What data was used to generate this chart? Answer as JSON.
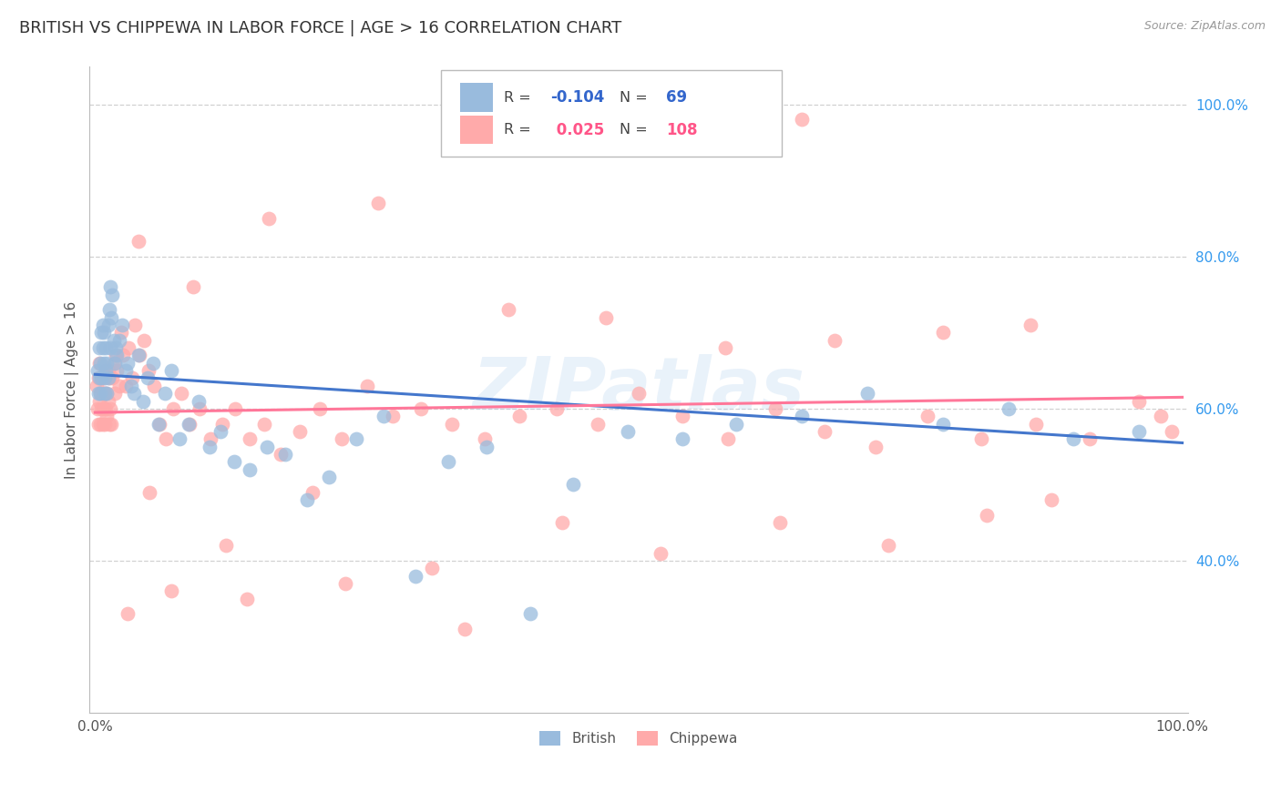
{
  "title": "BRITISH VS CHIPPEWA IN LABOR FORCE | AGE > 16 CORRELATION CHART",
  "source": "Source: ZipAtlas.com",
  "ylabel": "In Labor Force | Age > 16",
  "british_R": -0.104,
  "british_N": 69,
  "chippewa_R": 0.025,
  "chippewa_N": 108,
  "british_color": "#99BBDD",
  "chippewa_color": "#FFAAAA",
  "british_line_color": "#4477CC",
  "chippewa_line_color": "#FF7799",
  "watermark": "ZIPatlas",
  "xlim": [
    0.0,
    1.0
  ],
  "ylim": [
    0.2,
    1.05
  ],
  "yticks": [
    0.4,
    0.6,
    0.8,
    1.0
  ],
  "ytick_labels": [
    "40.0%",
    "60.0%",
    "80.0%",
    "100.0%"
  ],
  "brit_line_y0": 0.645,
  "brit_line_y1": 0.555,
  "chip_line_y0": 0.595,
  "chip_line_y1": 0.615,
  "british_x": [
    0.002,
    0.003,
    0.004,
    0.004,
    0.005,
    0.005,
    0.006,
    0.006,
    0.007,
    0.007,
    0.008,
    0.008,
    0.009,
    0.009,
    0.01,
    0.01,
    0.011,
    0.011,
    0.012,
    0.012,
    0.013,
    0.014,
    0.014,
    0.015,
    0.016,
    0.017,
    0.018,
    0.019,
    0.02,
    0.022,
    0.025,
    0.028,
    0.03,
    0.033,
    0.036,
    0.04,
    0.044,
    0.048,
    0.053,
    0.058,
    0.064,
    0.07,
    0.078,
    0.086,
    0.095,
    0.105,
    0.115,
    0.128,
    0.142,
    0.158,
    0.175,
    0.195,
    0.215,
    0.24,
    0.265,
    0.295,
    0.325,
    0.36,
    0.4,
    0.44,
    0.49,
    0.54,
    0.59,
    0.65,
    0.71,
    0.78,
    0.84,
    0.9,
    0.96
  ],
  "british_y": [
    0.65,
    0.62,
    0.68,
    0.64,
    0.66,
    0.62,
    0.7,
    0.64,
    0.68,
    0.71,
    0.66,
    0.7,
    0.64,
    0.62,
    0.65,
    0.68,
    0.66,
    0.62,
    0.64,
    0.71,
    0.73,
    0.76,
    0.68,
    0.72,
    0.75,
    0.69,
    0.66,
    0.68,
    0.67,
    0.69,
    0.71,
    0.65,
    0.66,
    0.63,
    0.62,
    0.67,
    0.61,
    0.64,
    0.66,
    0.58,
    0.62,
    0.65,
    0.56,
    0.58,
    0.61,
    0.55,
    0.57,
    0.53,
    0.52,
    0.55,
    0.54,
    0.48,
    0.51,
    0.56,
    0.59,
    0.38,
    0.53,
    0.55,
    0.33,
    0.5,
    0.57,
    0.56,
    0.58,
    0.59,
    0.62,
    0.58,
    0.6,
    0.56,
    0.57
  ],
  "chippewa_x": [
    0.001,
    0.002,
    0.003,
    0.003,
    0.004,
    0.004,
    0.005,
    0.005,
    0.006,
    0.006,
    0.007,
    0.007,
    0.008,
    0.008,
    0.009,
    0.009,
    0.01,
    0.01,
    0.011,
    0.011,
    0.012,
    0.012,
    0.013,
    0.013,
    0.014,
    0.015,
    0.016,
    0.017,
    0.018,
    0.019,
    0.02,
    0.022,
    0.024,
    0.026,
    0.028,
    0.031,
    0.034,
    0.037,
    0.041,
    0.045,
    0.049,
    0.054,
    0.059,
    0.065,
    0.072,
    0.079,
    0.087,
    0.096,
    0.106,
    0.117,
    0.129,
    0.142,
    0.156,
    0.171,
    0.188,
    0.207,
    0.227,
    0.25,
    0.274,
    0.3,
    0.328,
    0.358,
    0.39,
    0.425,
    0.462,
    0.5,
    0.54,
    0.582,
    0.626,
    0.671,
    0.718,
    0.766,
    0.815,
    0.865,
    0.915,
    0.96,
    0.98,
    0.99,
    0.05,
    0.12,
    0.2,
    0.31,
    0.43,
    0.52,
    0.63,
    0.73,
    0.82,
    0.88,
    0.04,
    0.09,
    0.16,
    0.26,
    0.38,
    0.47,
    0.58,
    0.68,
    0.78,
    0.86,
    0.03,
    0.07,
    0.14,
    0.23,
    0.34,
    0.45,
    0.55,
    0.65
  ],
  "chippewa_y": [
    0.63,
    0.6,
    0.58,
    0.64,
    0.61,
    0.66,
    0.62,
    0.58,
    0.64,
    0.6,
    0.58,
    0.62,
    0.6,
    0.64,
    0.58,
    0.62,
    0.6,
    0.65,
    0.62,
    0.59,
    0.65,
    0.61,
    0.58,
    0.64,
    0.6,
    0.58,
    0.64,
    0.66,
    0.62,
    0.67,
    0.65,
    0.63,
    0.7,
    0.67,
    0.63,
    0.68,
    0.64,
    0.71,
    0.67,
    0.69,
    0.65,
    0.63,
    0.58,
    0.56,
    0.6,
    0.62,
    0.58,
    0.6,
    0.56,
    0.58,
    0.6,
    0.56,
    0.58,
    0.54,
    0.57,
    0.6,
    0.56,
    0.63,
    0.59,
    0.6,
    0.58,
    0.56,
    0.59,
    0.6,
    0.58,
    0.62,
    0.59,
    0.56,
    0.6,
    0.57,
    0.55,
    0.59,
    0.56,
    0.58,
    0.56,
    0.61,
    0.59,
    0.57,
    0.49,
    0.42,
    0.49,
    0.39,
    0.45,
    0.41,
    0.45,
    0.42,
    0.46,
    0.48,
    0.82,
    0.76,
    0.85,
    0.87,
    0.73,
    0.72,
    0.68,
    0.69,
    0.7,
    0.71,
    0.33,
    0.36,
    0.35,
    0.37,
    0.31,
    0.96,
    0.97,
    0.98
  ]
}
